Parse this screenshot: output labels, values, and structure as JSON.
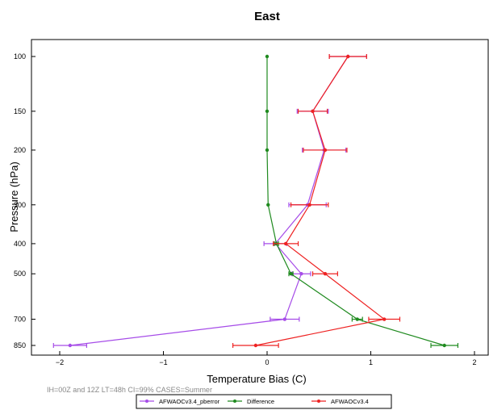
{
  "chart_data": {
    "type": "line",
    "title": "East",
    "xlabel": "Temperature Bias (C)",
    "ylabel": "Pressure (hPa)",
    "xlim": [
      -2.15,
      2.15
    ],
    "y_levels": [
      100,
      150,
      200,
      300,
      400,
      500,
      700,
      850
    ],
    "y_scale": "log",
    "y_reversed": true,
    "x_ticks": [
      -2,
      -1,
      0,
      1,
      2
    ],
    "x_tick_labels": [
      "−2",
      "−1",
      "0",
      "1",
      "2"
    ],
    "grid": false,
    "legend_position": "bottom",
    "caption": "IH=00Z and 12Z  LT=48h CI=99% CASES=Summer",
    "series": [
      {
        "name": "AFWAOCv3.4_pberror",
        "color": "#a64ce8",
        "points": [
          {
            "y": 100,
            "x": 0.78,
            "err": 0.18
          },
          {
            "y": 150,
            "x": 0.44,
            "err": 0.15
          },
          {
            "y": 200,
            "x": 0.55,
            "err": 0.21
          },
          {
            "y": 300,
            "x": 0.39,
            "err": 0.18
          },
          {
            "y": 400,
            "x": 0.08,
            "err": 0.11
          },
          {
            "y": 500,
            "x": 0.33,
            "err": 0.09
          },
          {
            "y": 700,
            "x": 0.17,
            "err": 0.14
          },
          {
            "y": 850,
            "x": -1.9,
            "err": 0.16
          }
        ]
      },
      {
        "name": "Difference",
        "color": "#1f8a1f",
        "points": [
          {
            "y": 100,
            "x": 0.0,
            "err": 0.0
          },
          {
            "y": 150,
            "x": 0.0,
            "err": 0.0
          },
          {
            "y": 200,
            "x": 0.0,
            "err": 0.0
          },
          {
            "y": 300,
            "x": 0.01,
            "err": 0.0
          },
          {
            "y": 400,
            "x": 0.09,
            "err": 0.02
          },
          {
            "y": 500,
            "x": 0.23,
            "err": 0.02
          },
          {
            "y": 700,
            "x": 0.87,
            "err": 0.05
          },
          {
            "y": 850,
            "x": 1.71,
            "err": 0.13
          }
        ]
      },
      {
        "name": "AFWAOCv3.4",
        "color": "#ee2222",
        "points": [
          {
            "y": 100,
            "x": 0.78,
            "err": 0.18
          },
          {
            "y": 150,
            "x": 0.44,
            "err": 0.14
          },
          {
            "y": 200,
            "x": 0.56,
            "err": 0.21
          },
          {
            "y": 300,
            "x": 0.41,
            "err": 0.18
          },
          {
            "y": 400,
            "x": 0.18,
            "err": 0.12
          },
          {
            "y": 500,
            "x": 0.56,
            "err": 0.12
          },
          {
            "y": 700,
            "x": 1.13,
            "err": 0.15
          },
          {
            "y": 850,
            "x": -0.11,
            "err": 0.22
          }
        ]
      }
    ]
  }
}
